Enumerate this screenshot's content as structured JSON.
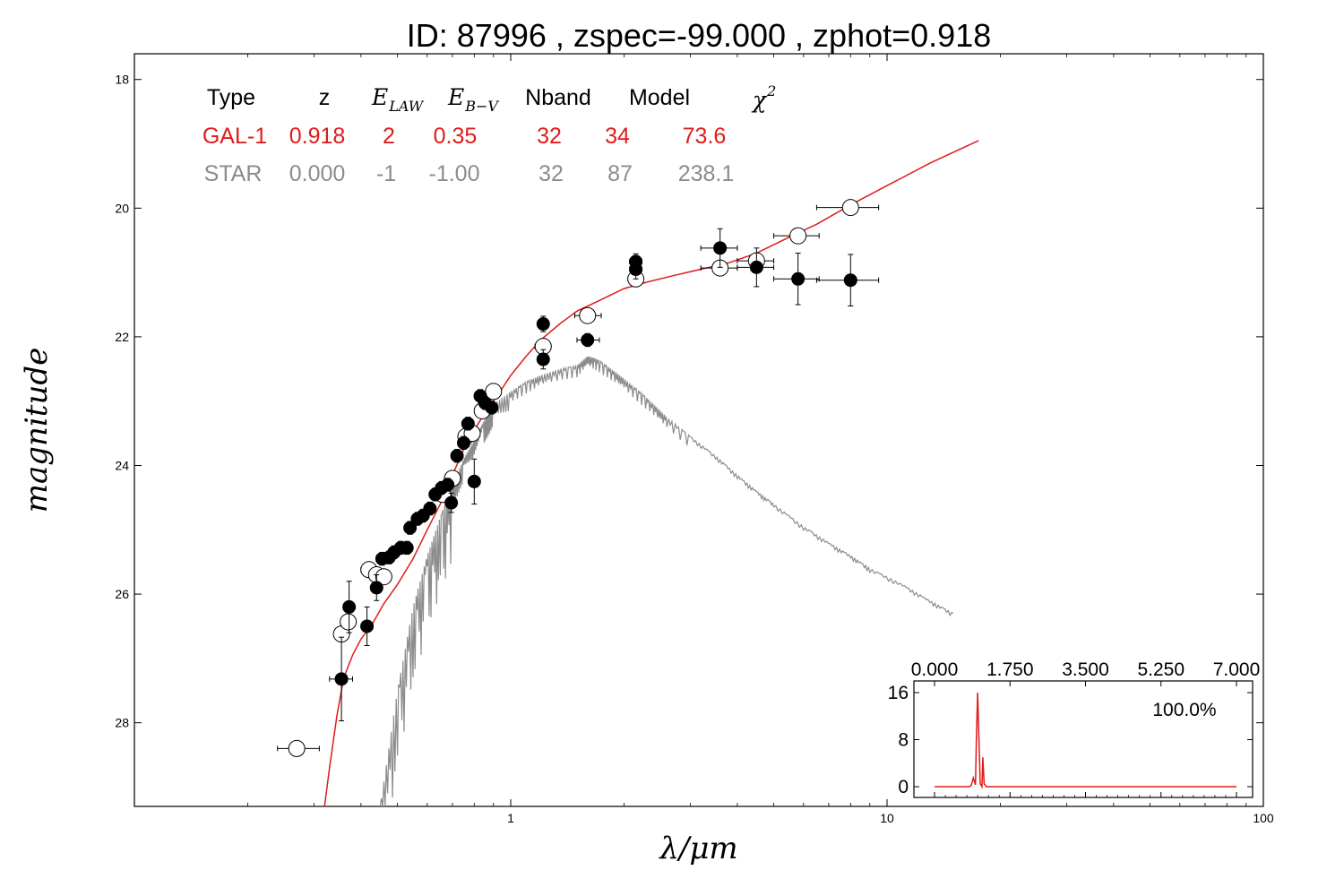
{
  "title": "ID:  87996 , zspec=-99.000 , zphot=0.918",
  "colors": {
    "galaxy": "#e01b1b",
    "star": "#8c8c8c",
    "axes": "#000000"
  },
  "chart_data": {
    "type": "scatter",
    "xlabel": "λ/μm",
    "ylabel": "magnitude",
    "xscale": "log",
    "xlim": [
      0.1,
      100
    ],
    "ylim": [
      29.3,
      17.6
    ],
    "y_inverted": true,
    "xticks": [
      {
        "v": 1,
        "label": "1"
      },
      {
        "v": 10,
        "label": "10"
      },
      {
        "v": 100,
        "label": "100"
      }
    ],
    "yticks": [
      {
        "v": 18,
        "label": "18"
      },
      {
        "v": 20,
        "label": "20"
      },
      {
        "v": 22,
        "label": "22"
      },
      {
        "v": 24,
        "label": "24"
      },
      {
        "v": 26,
        "label": "26"
      },
      {
        "v": 28,
        "label": "28"
      }
    ],
    "fit_table": {
      "headers": [
        "Type",
        "z",
        "E",
        "E",
        "Nband",
        "Model",
        "χ"
      ],
      "header_subscripts": [
        "",
        "",
        "LAW",
        "B−V",
        "",
        "",
        ""
      ],
      "header_superscripts": [
        "",
        "",
        "",
        "",
        "",
        "",
        "2"
      ],
      "rows": [
        {
          "name": "galaxy",
          "cells": [
            "GAL-1",
            "0.918",
            "2",
            "0.35",
            "32",
            "34",
            "73.6"
          ]
        },
        {
          "name": "star",
          "cells": [
            "STAR",
            "0.000",
            "-1",
            "-1.00",
            "32",
            "87",
            "238.1"
          ]
        }
      ]
    },
    "series": [
      {
        "kind": "model-galaxy",
        "points": [
          [
            0.32,
            29.3
          ],
          [
            0.33,
            28.7
          ],
          [
            0.345,
            27.9
          ],
          [
            0.36,
            27.3
          ],
          [
            0.38,
            26.95
          ],
          [
            0.4,
            26.7
          ],
          [
            0.43,
            26.45
          ],
          [
            0.46,
            26.15
          ],
          [
            0.5,
            25.85
          ],
          [
            0.55,
            25.45
          ],
          [
            0.6,
            25.0
          ],
          [
            0.65,
            24.6
          ],
          [
            0.7,
            24.15
          ],
          [
            0.75,
            23.75
          ],
          [
            0.8,
            23.45
          ],
          [
            0.85,
            23.2
          ],
          [
            0.9,
            23.0
          ],
          [
            0.95,
            22.8
          ],
          [
            1.0,
            22.6
          ],
          [
            1.1,
            22.3
          ],
          [
            1.2,
            22.05
          ],
          [
            1.35,
            21.8
          ],
          [
            1.5,
            21.6
          ],
          [
            1.7,
            21.45
          ],
          [
            2.0,
            21.25
          ],
          [
            2.3,
            21.15
          ],
          [
            2.7,
            21.05
          ],
          [
            3.2,
            20.95
          ],
          [
            3.8,
            20.85
          ],
          [
            4.5,
            20.7
          ],
          [
            5.5,
            20.45
          ],
          [
            6.5,
            20.25
          ],
          [
            8.0,
            19.95
          ],
          [
            10.0,
            19.65
          ],
          [
            13.0,
            19.3
          ],
          [
            17.5,
            18.95
          ]
        ]
      },
      {
        "kind": "model-star",
        "points": [
          [
            0.45,
            29.3
          ],
          [
            0.5,
            27.5
          ],
          [
            0.55,
            26.2
          ],
          [
            0.6,
            25.4
          ],
          [
            0.65,
            24.8
          ],
          [
            0.7,
            24.3
          ],
          [
            0.75,
            23.9
          ],
          [
            0.8,
            23.6
          ],
          [
            0.85,
            23.3
          ],
          [
            0.9,
            23.05
          ],
          [
            1.0,
            22.85
          ],
          [
            1.1,
            22.7
          ],
          [
            1.2,
            22.6
          ],
          [
            1.35,
            22.5
          ],
          [
            1.5,
            22.45
          ],
          [
            1.6,
            22.3
          ],
          [
            1.7,
            22.35
          ],
          [
            1.85,
            22.5
          ],
          [
            2.0,
            22.65
          ],
          [
            2.2,
            22.85
          ],
          [
            2.4,
            23.05
          ],
          [
            2.6,
            23.25
          ],
          [
            3.0,
            23.55
          ],
          [
            3.5,
            23.85
          ],
          [
            4.0,
            24.15
          ],
          [
            4.5,
            24.4
          ],
          [
            5.0,
            24.6
          ],
          [
            6.0,
            24.95
          ],
          [
            7.0,
            25.2
          ],
          [
            8.0,
            25.4
          ],
          [
            9.0,
            25.6
          ],
          [
            11.0,
            25.85
          ],
          [
            13.0,
            26.1
          ],
          [
            15.0,
            26.3
          ]
        ]
      },
      {
        "kind": "observed",
        "points": [
          {
            "x": 0.27,
            "y": 28.4,
            "xlo": 0.24,
            "xhi": 0.31,
            "err": 0.0,
            "filled": false
          },
          {
            "x": 0.355,
            "y": 26.62,
            "xlo": 0.34,
            "xhi": 0.37,
            "err": 0.12,
            "filled": false
          },
          {
            "x": 0.37,
            "y": 26.43,
            "xlo": 0.36,
            "xhi": 0.385,
            "err": 0.1,
            "filled": false
          },
          {
            "x": 0.355,
            "y": 27.32,
            "xlo": 0.33,
            "xhi": 0.38,
            "err": 0.65,
            "filled": true
          },
          {
            "x": 0.372,
            "y": 26.2,
            "xlo": 0.365,
            "xhi": 0.38,
            "err": 0.4,
            "filled": true
          },
          {
            "x": 0.42,
            "y": 25.62,
            "xlo": 0.4,
            "xhi": 0.44,
            "err": 0.1,
            "filled": false
          },
          {
            "x": 0.44,
            "y": 25.7,
            "xlo": 0.42,
            "xhi": 0.46,
            "err": 0.1,
            "filled": false
          },
          {
            "x": 0.46,
            "y": 25.73,
            "xlo": 0.44,
            "xhi": 0.48,
            "err": 0.1,
            "filled": false
          },
          {
            "x": 0.415,
            "y": 26.5,
            "xlo": 0.405,
            "xhi": 0.425,
            "err": 0.3,
            "filled": true
          },
          {
            "x": 0.44,
            "y": 25.9,
            "xlo": 0.43,
            "xhi": 0.45,
            "err": 0.2,
            "filled": true
          },
          {
            "x": 0.455,
            "y": 25.45,
            "xlo": 0.45,
            "xhi": 0.46,
            "err": 0.1,
            "filled": true
          },
          {
            "x": 0.475,
            "y": 25.43,
            "xlo": 0.47,
            "xhi": 0.48,
            "err": 0.1,
            "filled": true
          },
          {
            "x": 0.49,
            "y": 25.35,
            "xlo": 0.485,
            "xhi": 0.495,
            "err": 0.1,
            "filled": true
          },
          {
            "x": 0.51,
            "y": 25.28,
            "xlo": 0.505,
            "xhi": 0.515,
            "err": 0.1,
            "filled": true
          },
          {
            "x": 0.53,
            "y": 25.28,
            "xlo": 0.525,
            "xhi": 0.535,
            "err": 0.1,
            "filled": true
          },
          {
            "x": 0.54,
            "y": 24.97,
            "xlo": 0.535,
            "xhi": 0.545,
            "err": 0.1,
            "filled": true
          },
          {
            "x": 0.565,
            "y": 24.83,
            "xlo": 0.56,
            "xhi": 0.57,
            "err": 0.1,
            "filled": true
          },
          {
            "x": 0.585,
            "y": 24.78,
            "xlo": 0.58,
            "xhi": 0.59,
            "err": 0.1,
            "filled": true
          },
          {
            "x": 0.61,
            "y": 24.67,
            "xlo": 0.605,
            "xhi": 0.615,
            "err": 0.1,
            "filled": true
          },
          {
            "x": 0.63,
            "y": 24.45,
            "xlo": 0.625,
            "xhi": 0.635,
            "err": 0.1,
            "filled": true
          },
          {
            "x": 0.655,
            "y": 24.35,
            "xlo": 0.65,
            "xhi": 0.66,
            "err": 0.1,
            "filled": true
          },
          {
            "x": 0.68,
            "y": 24.3,
            "xlo": 0.675,
            "xhi": 0.685,
            "err": 0.1,
            "filled": true
          },
          {
            "x": 0.695,
            "y": 24.58,
            "xlo": 0.69,
            "xhi": 0.7,
            "err": 0.15,
            "filled": true
          },
          {
            "x": 0.72,
            "y": 23.85,
            "xlo": 0.715,
            "xhi": 0.725,
            "err": 0.1,
            "filled": true
          },
          {
            "x": 0.75,
            "y": 23.65,
            "xlo": 0.745,
            "xhi": 0.755,
            "err": 0.1,
            "filled": true
          },
          {
            "x": 0.77,
            "y": 23.35,
            "xlo": 0.765,
            "xhi": 0.775,
            "err": 0.1,
            "filled": true
          },
          {
            "x": 0.8,
            "y": 24.25,
            "xlo": 0.795,
            "xhi": 0.805,
            "err": 0.35,
            "filled": true
          },
          {
            "x": 0.83,
            "y": 22.92,
            "xlo": 0.825,
            "xhi": 0.835,
            "err": 0.1,
            "filled": true
          },
          {
            "x": 0.855,
            "y": 23.03,
            "xlo": 0.85,
            "xhi": 0.86,
            "err": 0.1,
            "filled": true
          },
          {
            "x": 0.89,
            "y": 23.1,
            "xlo": 0.885,
            "xhi": 0.895,
            "err": 0.1,
            "filled": true
          },
          {
            "x": 0.66,
            "y": 24.45,
            "xlo": 0.63,
            "xhi": 0.69,
            "err": 0.08,
            "filled": false
          },
          {
            "x": 0.7,
            "y": 24.2,
            "xlo": 0.68,
            "xhi": 0.72,
            "err": 0.08,
            "filled": false
          },
          {
            "x": 0.76,
            "y": 23.55,
            "xlo": 0.74,
            "xhi": 0.78,
            "err": 0.08,
            "filled": false
          },
          {
            "x": 0.79,
            "y": 23.5,
            "xlo": 0.77,
            "xhi": 0.82,
            "err": 0.08,
            "filled": false
          },
          {
            "x": 0.84,
            "y": 23.15,
            "xlo": 0.82,
            "xhi": 0.86,
            "err": 0.08,
            "filled": false
          },
          {
            "x": 0.9,
            "y": 22.85,
            "xlo": 0.87,
            "xhi": 0.93,
            "err": 0.08,
            "filled": false
          },
          {
            "x": 1.22,
            "y": 22.15,
            "xlo": 1.16,
            "xhi": 1.28,
            "err": 0.12,
            "filled": false
          },
          {
            "x": 1.22,
            "y": 21.8,
            "xlo": 1.19,
            "xhi": 1.26,
            "err": 0.12,
            "filled": true
          },
          {
            "x": 1.22,
            "y": 22.35,
            "xlo": 1.19,
            "xhi": 1.26,
            "err": 0.15,
            "filled": true
          },
          {
            "x": 1.6,
            "y": 21.67,
            "xlo": 1.48,
            "xhi": 1.74,
            "err": 0.08,
            "filled": false
          },
          {
            "x": 1.6,
            "y": 22.05,
            "xlo": 1.5,
            "xhi": 1.72,
            "err": 0.1,
            "filled": true
          },
          {
            "x": 2.15,
            "y": 21.1,
            "xlo": 2.05,
            "xhi": 2.25,
            "err": 0.08,
            "filled": false
          },
          {
            "x": 2.15,
            "y": 20.83,
            "xlo": 2.07,
            "xhi": 2.23,
            "err": 0.12,
            "filled": true
          },
          {
            "x": 2.15,
            "y": 20.95,
            "xlo": 2.07,
            "xhi": 2.23,
            "err": 0.15,
            "filled": true
          },
          {
            "x": 3.6,
            "y": 20.93,
            "xlo": 3.2,
            "xhi": 4.0,
            "err": 0.08,
            "filled": false
          },
          {
            "x": 3.6,
            "y": 20.62,
            "xlo": 3.2,
            "xhi": 4.0,
            "err": 0.3,
            "filled": true
          },
          {
            "x": 4.5,
            "y": 20.82,
            "xlo": 4.0,
            "xhi": 5.0,
            "err": 0.08,
            "filled": false
          },
          {
            "x": 4.5,
            "y": 20.92,
            "xlo": 4.0,
            "xhi": 5.0,
            "err": 0.3,
            "filled": true
          },
          {
            "x": 5.8,
            "y": 20.43,
            "xlo": 5.0,
            "xhi": 6.6,
            "err": 0.08,
            "filled": false
          },
          {
            "x": 5.8,
            "y": 21.1,
            "xlo": 5.0,
            "xhi": 6.6,
            "err": 0.4,
            "filled": true
          },
          {
            "x": 8.0,
            "y": 19.99,
            "xlo": 6.5,
            "xhi": 9.5,
            "err": 0.08,
            "filled": false
          },
          {
            "x": 8.0,
            "y": 21.12,
            "xlo": 6.5,
            "xhi": 9.5,
            "err": 0.4,
            "filled": true
          }
        ]
      }
    ],
    "inset": {
      "type": "line",
      "xlim": [
        0,
        7
      ],
      "ylim": [
        0,
        16
      ],
      "xtick_labels": [
        "0.000",
        "1.750",
        "3.500",
        "5.250",
        "7.000"
      ],
      "ytick_labels": [
        "16",
        "8",
        "0"
      ],
      "annotation": "100.0%",
      "points": [
        [
          0,
          0
        ],
        [
          0.8,
          0
        ],
        [
          0.85,
          0.2
        ],
        [
          0.9,
          1.5
        ],
        [
          0.95,
          0.3
        ],
        [
          0.97,
          8
        ],
        [
          1.0,
          16
        ],
        [
          1.03,
          8
        ],
        [
          1.06,
          0.5
        ],
        [
          1.1,
          0
        ],
        [
          1.12,
          5
        ],
        [
          1.15,
          0.5
        ],
        [
          1.2,
          0
        ],
        [
          7,
          0
        ]
      ]
    }
  }
}
